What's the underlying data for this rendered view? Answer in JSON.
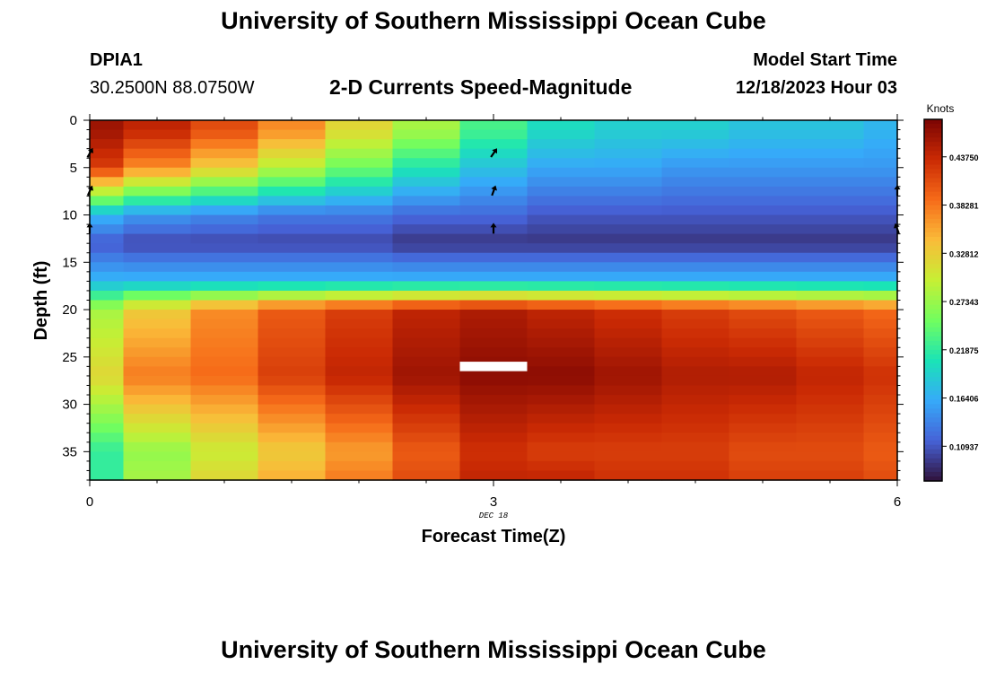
{
  "header": {
    "title": "University of Southern Mississippi Ocean Cube",
    "station": "DPIA1",
    "coords": "30.2500N  88.0750W",
    "subtitle": "2-D Currents Speed-Magnitude",
    "model_label": "Model Start Time",
    "model_time": "12/18/2023 Hour 03"
  },
  "footer": {
    "title": "University of Southern Mississippi Ocean Cube"
  },
  "chart_data": {
    "type": "heatmap",
    "title": "2-D Currents Speed-Magnitude",
    "xlabel": "Forecast Time(Z)",
    "ylabel": "Depth (ft)",
    "x_date_label": "DEC 18",
    "x_ticks": [
      0,
      3,
      6
    ],
    "y_ticks": [
      0,
      5,
      10,
      15,
      20,
      25,
      30,
      35
    ],
    "xlim": [
      0,
      6
    ],
    "ylim": [
      38,
      0
    ],
    "colorbar": {
      "label": "Knots",
      "ticks": [
        "0.43750",
        "0.38281",
        "0.32812",
        "0.27343",
        "0.21875",
        "0.16406",
        "0.10937"
      ],
      "range": [
        0.07,
        0.48
      ],
      "colors": [
        "#30123b",
        "#4662d7",
        "#36aaf9",
        "#1ae4b6",
        "#72fe5e",
        "#c7ef34",
        "#fabb39",
        "#f66b19",
        "#ca2a04",
        "#7a0403"
      ]
    },
    "x": [
      0,
      0.5,
      1,
      1.5,
      2,
      2.5,
      3,
      3.5,
      4,
      4.5,
      5,
      5.5,
      6
    ],
    "depth": [
      1,
      5,
      10,
      13,
      17,
      20,
      27,
      35,
      38
    ],
    "speed_knots": [
      [
        0.46,
        0.44,
        0.41,
        0.37,
        0.32,
        0.28,
        0.23,
        0.2,
        0.19,
        0.19,
        0.18,
        0.18,
        0.17
      ],
      [
        0.42,
        0.37,
        0.33,
        0.29,
        0.25,
        0.21,
        0.18,
        0.16,
        0.16,
        0.15,
        0.15,
        0.15,
        0.15
      ],
      [
        0.17,
        0.15,
        0.14,
        0.13,
        0.13,
        0.12,
        0.12,
        0.11,
        0.11,
        0.11,
        0.11,
        0.11,
        0.11
      ],
      [
        0.11,
        0.1,
        0.1,
        0.1,
        0.1,
        0.09,
        0.09,
        0.09,
        0.09,
        0.09,
        0.09,
        0.09,
        0.09
      ],
      [
        0.17,
        0.17,
        0.17,
        0.17,
        0.17,
        0.17,
        0.17,
        0.17,
        0.17,
        0.17,
        0.17,
        0.17,
        0.17
      ],
      [
        0.28,
        0.33,
        0.37,
        0.4,
        0.42,
        0.44,
        0.45,
        0.44,
        0.43,
        0.42,
        0.41,
        0.4,
        0.39
      ],
      [
        0.32,
        0.38,
        0.39,
        0.42,
        0.44,
        0.46,
        0.47,
        0.47,
        0.46,
        0.45,
        0.45,
        0.44,
        0.43
      ],
      [
        0.22,
        0.27,
        0.3,
        0.33,
        0.36,
        0.4,
        0.43,
        0.42,
        0.42,
        0.42,
        0.41,
        0.41,
        0.4
      ],
      [
        0.22,
        0.28,
        0.32,
        0.35,
        0.38,
        0.41,
        0.44,
        0.44,
        0.43,
        0.43,
        0.42,
        0.42,
        0.41
      ]
    ],
    "vectors": [
      {
        "x": 0,
        "depth": 3.5,
        "angle": 30
      },
      {
        "x": 0,
        "depth": 7.5,
        "angle": 25
      },
      {
        "x": 0,
        "depth": 11.5,
        "angle": 0
      },
      {
        "x": 3,
        "depth": 3.5,
        "angle": 35
      },
      {
        "x": 3,
        "depth": 7.5,
        "angle": 20
      },
      {
        "x": 3,
        "depth": 11.5,
        "angle": 0
      },
      {
        "x": 6,
        "depth": 7.5,
        "angle": 0
      },
      {
        "x": 6,
        "depth": 11.5,
        "angle": -20
      }
    ],
    "missing_cell": {
      "x": [
        2.75,
        3.25
      ],
      "depth": [
        25.5,
        26.5
      ]
    }
  }
}
